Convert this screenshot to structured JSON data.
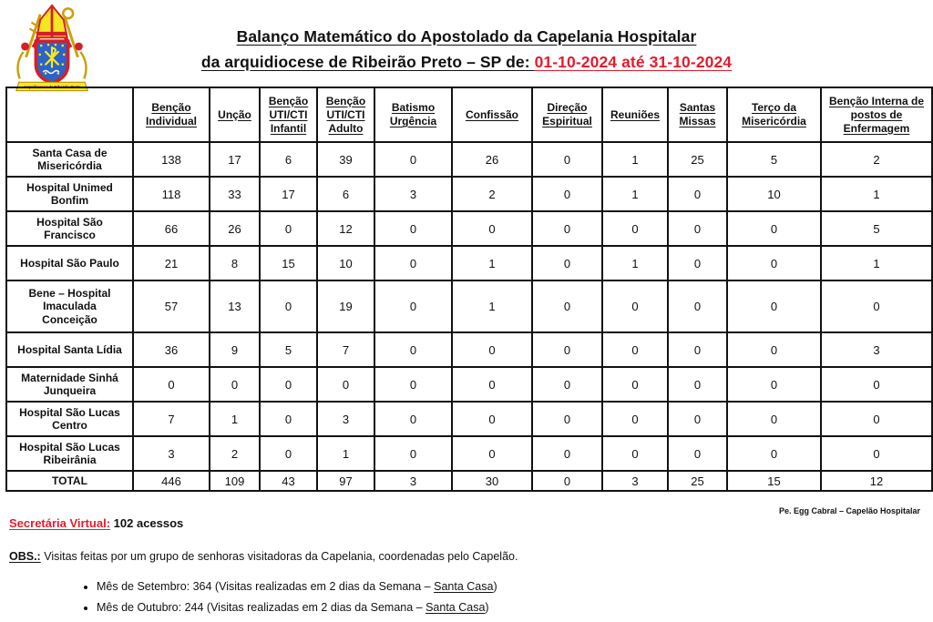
{
  "title": {
    "line1": "Balanço Matemático do Apostolado da Capelania Hospitalar",
    "line2_black": "da arquidiocese de Ribeirão Preto – SP de: ",
    "line2_red": "01-10-2024 até 31-10-2024"
  },
  "logo": {
    "ribbon_text": "Arquidiocese de Ribeirão Preto",
    "colors": {
      "mitre_gold": "#f6e723",
      "red": "#d42027",
      "shield_blue": "#2c63c8"
    }
  },
  "table": {
    "columns": [
      "Benção Individual",
      "Unção",
      "Benção UTI/CTI Infantil",
      "Benção UTI/CTI Adulto",
      "Batismo Urgência",
      "Confissão",
      "Direção Espiritual",
      "Reuniões",
      "Santas Missas",
      "Terço da Misericórdia",
      "Benção Interna de postos de Enfermagem"
    ],
    "rows": [
      {
        "name": "Santa Casa de Misericórdia",
        "values": [
          138,
          17,
          6,
          39,
          0,
          26,
          0,
          1,
          25,
          5,
          2
        ]
      },
      {
        "name": "Hospital Unimed Bonfim",
        "values": [
          118,
          33,
          17,
          6,
          3,
          2,
          0,
          1,
          0,
          10,
          1
        ]
      },
      {
        "name": "Hospital São Francisco",
        "values": [
          66,
          26,
          0,
          12,
          0,
          0,
          0,
          0,
          0,
          0,
          5
        ]
      },
      {
        "name": "Hospital São Paulo",
        "values": [
          21,
          8,
          15,
          10,
          0,
          1,
          0,
          1,
          0,
          0,
          1
        ]
      },
      {
        "name": "Bene – Hospital Imaculada Conceição",
        "values": [
          57,
          13,
          0,
          19,
          0,
          1,
          0,
          0,
          0,
          0,
          0
        ]
      },
      {
        "name": "Hospital Santa Lídia",
        "values": [
          36,
          9,
          5,
          7,
          0,
          0,
          0,
          0,
          0,
          0,
          3
        ]
      },
      {
        "name": "Maternidade Sinhá Junqueira",
        "values": [
          0,
          0,
          0,
          0,
          0,
          0,
          0,
          0,
          0,
          0,
          0
        ]
      },
      {
        "name": "Hospital São Lucas Centro",
        "values": [
          7,
          1,
          0,
          3,
          0,
          0,
          0,
          0,
          0,
          0,
          0
        ]
      },
      {
        "name": "Hospital São Lucas Ribeirânia",
        "values": [
          3,
          2,
          0,
          1,
          0,
          0,
          0,
          0,
          0,
          0,
          0
        ]
      }
    ],
    "total_row": {
      "name": "TOTAL",
      "values": [
        446,
        109,
        43,
        97,
        3,
        30,
        0,
        3,
        25,
        15,
        12
      ]
    }
  },
  "footer": {
    "signature": "Pe. Egg Cabral – Capelão Hospitalar",
    "secretaria_label": "Secretária Virtual:",
    "secretaria_value": " 102 acessos",
    "obs_label": "OBS.:",
    "obs_text": " Visitas feitas por um grupo de senhoras visitadoras da Capelania, coordenadas pelo Capelão.",
    "bullets": [
      {
        "text": "Mês de Setembro: 364 (Visitas realizadas em 2 dias da Semana – ",
        "underlined": "Santa Casa",
        "suffix": ")"
      },
      {
        "text": "Mês de Outubro: 244 (Visitas realizadas em 2 dias da Semana – ",
        "underlined": "Santa Casa",
        "suffix": ")"
      }
    ]
  }
}
